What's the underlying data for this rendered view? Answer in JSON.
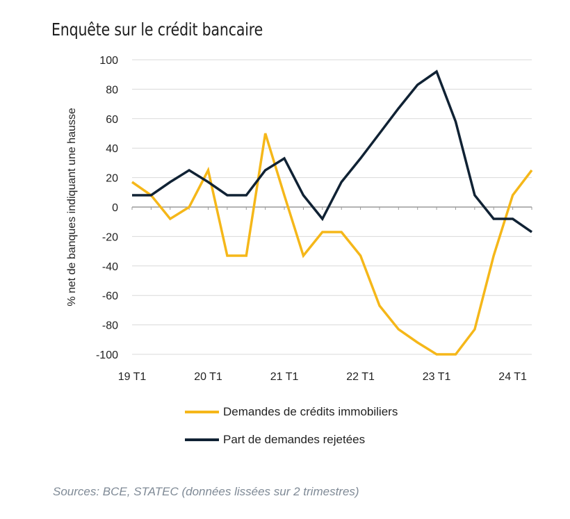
{
  "chart_data": {
    "type": "line",
    "title": "Enquête sur le crédit bancaire",
    "ylabel": "% net de banques indiquant une hausse",
    "xlabel": "",
    "ylim": [
      -100,
      100
    ],
    "yticks": [
      100,
      80,
      60,
      40,
      20,
      0,
      -20,
      -40,
      -60,
      -80,
      -100
    ],
    "xtick_labels": [
      "19 T1",
      "20 T1",
      "21 T1",
      "22 T1",
      "23 T1",
      "24 T1"
    ],
    "xtick_positions": [
      0,
      4,
      8,
      12,
      16,
      20
    ],
    "grid": "horizontal",
    "series": [
      {
        "name": "Demandes de crédits immobiliers",
        "color": "#f5b719",
        "x": [
          0,
          1,
          2,
          3,
          4,
          5,
          6,
          7,
          8,
          9,
          10,
          11,
          12,
          13,
          14,
          15,
          16,
          17,
          18,
          19,
          20,
          21
        ],
        "values": [
          17,
          8,
          -8,
          0,
          25,
          -33,
          -33,
          50,
          8,
          -33,
          -17,
          -17,
          -33,
          -67,
          -83,
          -92,
          -100,
          -100,
          -83,
          -33,
          8,
          25
        ]
      },
      {
        "name": "Part de demandes rejetées",
        "color": "#102234",
        "x": [
          0,
          1,
          2,
          3,
          4,
          5,
          6,
          7,
          8,
          9,
          10,
          11,
          12,
          13,
          14,
          15,
          16,
          17,
          18,
          19,
          20,
          21
        ],
        "values": [
          8,
          8,
          17,
          25,
          17,
          8,
          8,
          25,
          33,
          8,
          -8,
          17,
          33,
          50,
          67,
          83,
          92,
          58,
          8,
          -8,
          -8,
          -17
        ]
      }
    ]
  },
  "source": "Sources: BCE, STATEC (données lissées sur 2 trimestres)"
}
